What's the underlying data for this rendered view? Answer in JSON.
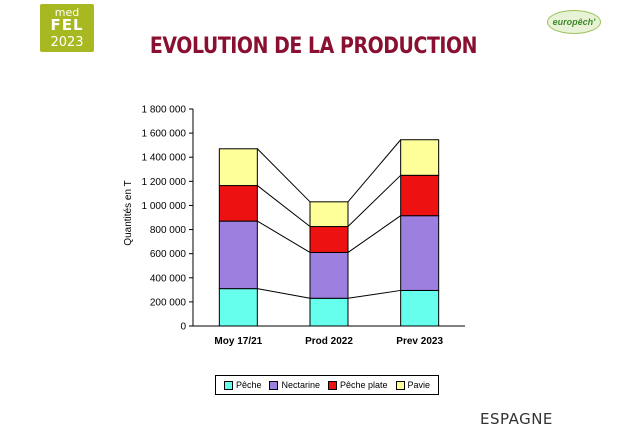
{
  "logo": {
    "line1": "med",
    "line2": "FEL",
    "line3": "2023"
  },
  "partner_logo": "europêch'",
  "title": "EVOLUTION DE LA PRODUCTION",
  "country": "ESPAGNE",
  "chart_data": {
    "type": "bar",
    "stacked": true,
    "categories": [
      "Moy 17/21",
      "Prod 2022",
      "Prev 2023"
    ],
    "series": [
      {
        "name": "Pêche",
        "color": "#66ffee",
        "values": [
          310000,
          230000,
          295000
        ]
      },
      {
        "name": "Nectarine",
        "color": "#9d7fe0",
        "values": [
          560000,
          380000,
          620000
        ]
      },
      {
        "name": "Pêche plate",
        "color": "#ee1111",
        "values": [
          295000,
          215000,
          335000
        ]
      },
      {
        "name": "Pavie",
        "color": "#ffff99",
        "values": [
          305000,
          205000,
          295000
        ]
      }
    ],
    "ylabel": "Quantités en T",
    "xlabel": "",
    "ylim": [
      0,
      1800000
    ],
    "yticks": [
      "0",
      "200 000",
      "400 000",
      "600 000",
      "800 000",
      "1 000 000",
      "1 200 000",
      "1 400 000",
      "1 600 000",
      "1 800 000"
    ],
    "connector_lines": true,
    "legend_position": "bottom",
    "grid": false
  }
}
